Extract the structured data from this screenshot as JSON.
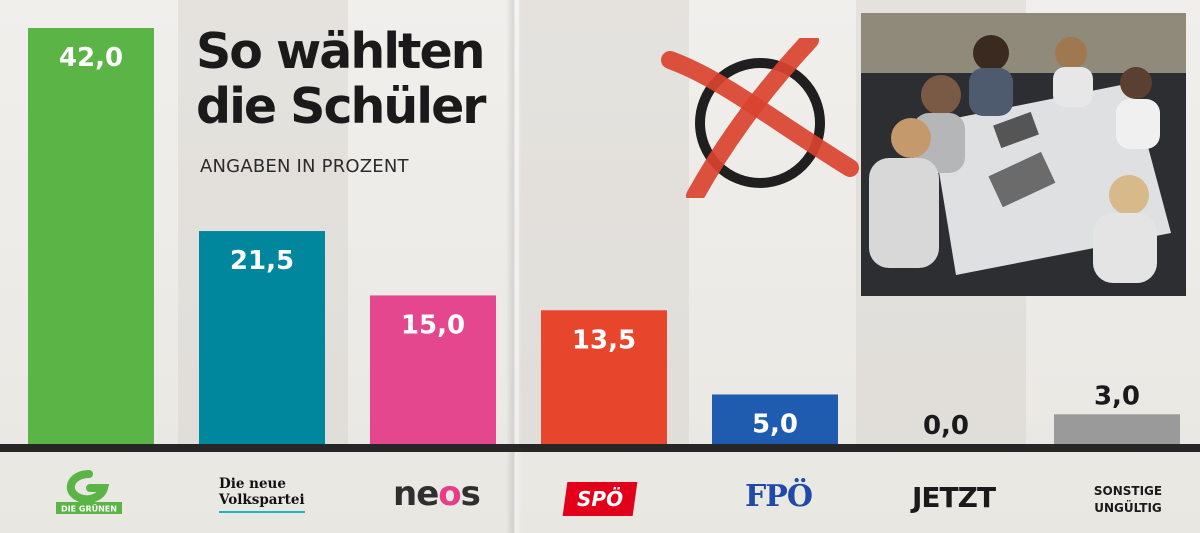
{
  "title": "So wählten\ndie Schüler",
  "subtitle": "ANGABEN IN PROZENT",
  "colors": {
    "background": "#eceae6",
    "baseline": "#262626",
    "value_text_light": "#ffffff",
    "value_text_dark": "#1a1a1a"
  },
  "icons": {
    "ballot": "ballot-cross-icon",
    "photo": "students-photo"
  },
  "logos": {
    "gruene_line1": "DIE GRÜNEN",
    "oevp_line1": "Die neue",
    "oevp_line2": "Volkspartei",
    "neos_prefix": "ne",
    "neos_dot": "o",
    "neos_suffix": "s",
    "spoe": "SPÖ",
    "fpoe": "FPÖ",
    "jetzt": "JETZT",
    "sonstige_line1": "SONSTIGE",
    "sonstige_line2": "UNGÜLTIG"
  },
  "chart_data": {
    "type": "bar",
    "title": "So wählten die Schüler",
    "subtitle": "ANGABEN IN PROZENT",
    "categories": [
      "Die Grünen",
      "Die neue Volkspartei",
      "NEOS",
      "SPÖ",
      "FPÖ",
      "JETZT",
      "SONSTIGE UNGÜLTIG"
    ],
    "values": [
      42.0,
      21.5,
      15.0,
      13.5,
      5.0,
      0.0,
      3.0
    ],
    "value_labels": [
      "42,0",
      "21,5",
      "15,0",
      "13,5",
      "5,0",
      "0,0",
      "3,0"
    ],
    "colors": [
      "#5bb446",
      "#00879e",
      "#e4478d",
      "#e8462c",
      "#1f5cb0",
      "#9a9a9a",
      "#9a9a9a"
    ],
    "ylim": [
      0,
      42
    ],
    "grid": false,
    "legend": "none"
  }
}
